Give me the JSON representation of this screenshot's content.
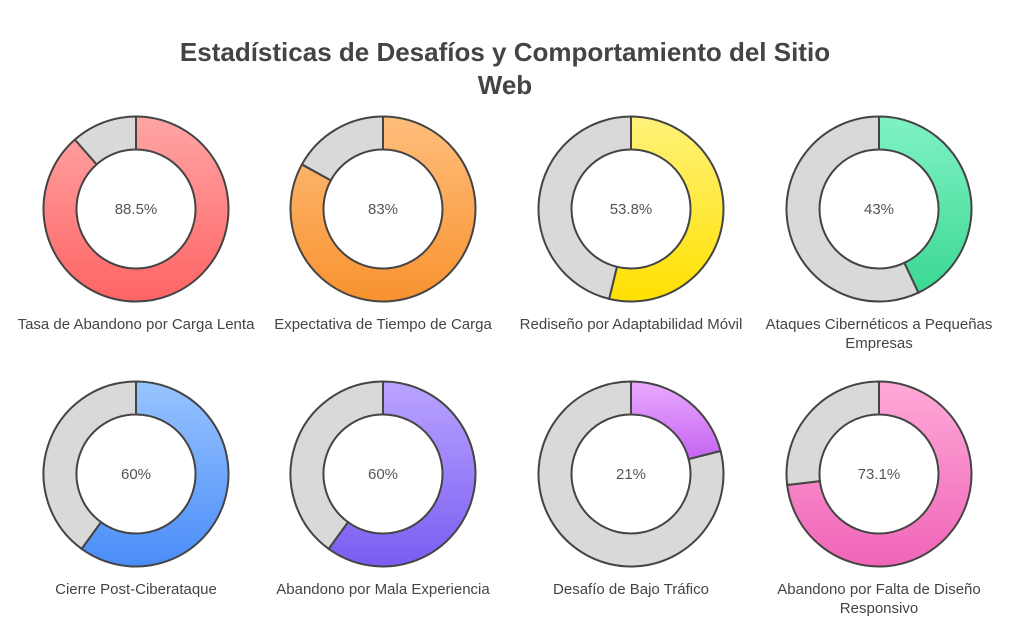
{
  "title_lines": [
    "Estadísticas de Desafíos y Comportamiento del Sitio",
    "Web"
  ],
  "chart_data": {
    "type": "pie",
    "variant": "donut",
    "title": "Estadísticas de Desafíos y Comportamiento del Sitio Web",
    "items": [
      {
        "label": "Tasa de Abandono por Carga Lenta",
        "value": 88.5,
        "display": "88.5%",
        "colors": [
          "#ffa5a5",
          "#ff6464"
        ]
      },
      {
        "label": "Expectativa de Tiempo de Carga",
        "value": 83,
        "display": "83%",
        "colors": [
          "#ffbe7c",
          "#f8922f"
        ]
      },
      {
        "label": "Rediseño por Adaptabilidad Móvil",
        "value": 53.8,
        "display": "53.8%",
        "colors": [
          "#fff27a",
          "#ffe000"
        ]
      },
      {
        "label": "Ataques Cibernéticos a Pequeñas Empresas",
        "value": 43,
        "display": "43%",
        "colors": [
          "#80f2c4",
          "#3cd894"
        ]
      },
      {
        "label": "Cierre Post-Ciberataque",
        "value": 60,
        "display": "60%",
        "colors": [
          "#98c4ff",
          "#4a8cf8"
        ]
      },
      {
        "label": "Abandono por Mala Experiencia",
        "value": 60,
        "display": "60%",
        "colors": [
          "#baa4ff",
          "#7a5cf2"
        ]
      },
      {
        "label": "Desafío de Bajo Tráfico",
        "value": 21,
        "display": "21%",
        "colors": [
          "#eaaaff",
          "#c464f2"
        ]
      },
      {
        "label": "Abandono por Falta de Diseño Responsivo",
        "value": 73.1,
        "display": "73.1%",
        "colors": [
          "#ffaad8",
          "#f064b8"
        ]
      }
    ],
    "remainder_color": "#d9d9d9"
  }
}
